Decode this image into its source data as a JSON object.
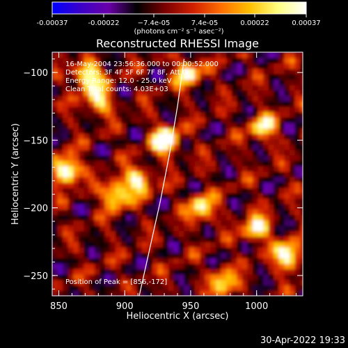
{
  "chart_data": {
    "type": "heatmap",
    "title": "Reconstructed RHESSI Image",
    "xlabel": "Heliocentric X (arcsec)",
    "ylabel": "Heliocentric Y (arcsec)",
    "xlim": [
      845,
      1035
    ],
    "ylim": [
      -265,
      -85
    ],
    "x_ticks": [
      850,
      900,
      950,
      1000
    ],
    "x_tick_labels": [
      "850",
      "900",
      "950",
      "1000"
    ],
    "y_ticks": [
      -100,
      -150,
      -200,
      -250
    ],
    "y_tick_labels": [
      "−100",
      "−150",
      "−200",
      "−250"
    ],
    "colorbar": {
      "ticks": [
        -0.00037,
        -0.00022,
        -7.4e-05,
        7.4e-05,
        0.00022,
        0.00037
      ],
      "tick_labels": [
        "-0.00037",
        "-0.00022",
        "−7.4e-05",
        "7.4e-05",
        "0.00022",
        "0.00037"
      ],
      "unit_label": "(photons cm⁻² s⁻¹ asec⁻²)",
      "colormap": [
        "#0000ff",
        "#3a00c8",
        "#6a00a8",
        "#000000",
        "#7a0000",
        "#d02000",
        "#ff7000",
        "#ffc000",
        "#ffff80",
        "#ffffff"
      ]
    },
    "annotations": {
      "time_range": "16-May-2004 23:56:36.000 to 00:00:52.000",
      "detectors": "Detectors: 3F 4F 5F 6F 7F 8F, Att 0",
      "energy": "Energy Range: 12.0 - 25.0 keV",
      "method": "Clean    Total counts: 4.03E+03",
      "peak": "Position of Peak = [856,-172]"
    },
    "peak_position": [
      856,
      -172
    ],
    "limb_curve": [
      [
        911,
        -265
      ],
      [
        919,
        -230
      ],
      [
        927,
        -195
      ],
      [
        934,
        -160
      ],
      [
        940,
        -125
      ],
      [
        945,
        -90
      ]
    ],
    "bright_features": [
      {
        "x": 856,
        "y": -172,
        "level": 1.0
      },
      {
        "x": 931,
        "y": -150,
        "level": 1.0
      },
      {
        "x": 872,
        "y": -102,
        "level": 0.85
      },
      {
        "x": 893,
        "y": -190,
        "level": 0.8
      },
      {
        "x": 910,
        "y": -180,
        "level": 0.75
      },
      {
        "x": 1024,
        "y": -235,
        "level": 0.9
      },
      {
        "x": 1000,
        "y": -215,
        "level": 0.75
      },
      {
        "x": 958,
        "y": -200,
        "level": 0.7
      },
      {
        "x": 948,
        "y": -100,
        "level": 0.7
      },
      {
        "x": 1005,
        "y": -140,
        "level": 0.65
      },
      {
        "x": 880,
        "y": -120,
        "level": 0.7
      },
      {
        "x": 975,
        "y": -255,
        "level": 0.65
      }
    ]
  },
  "timestamp": "30-Apr-2022 19:33"
}
